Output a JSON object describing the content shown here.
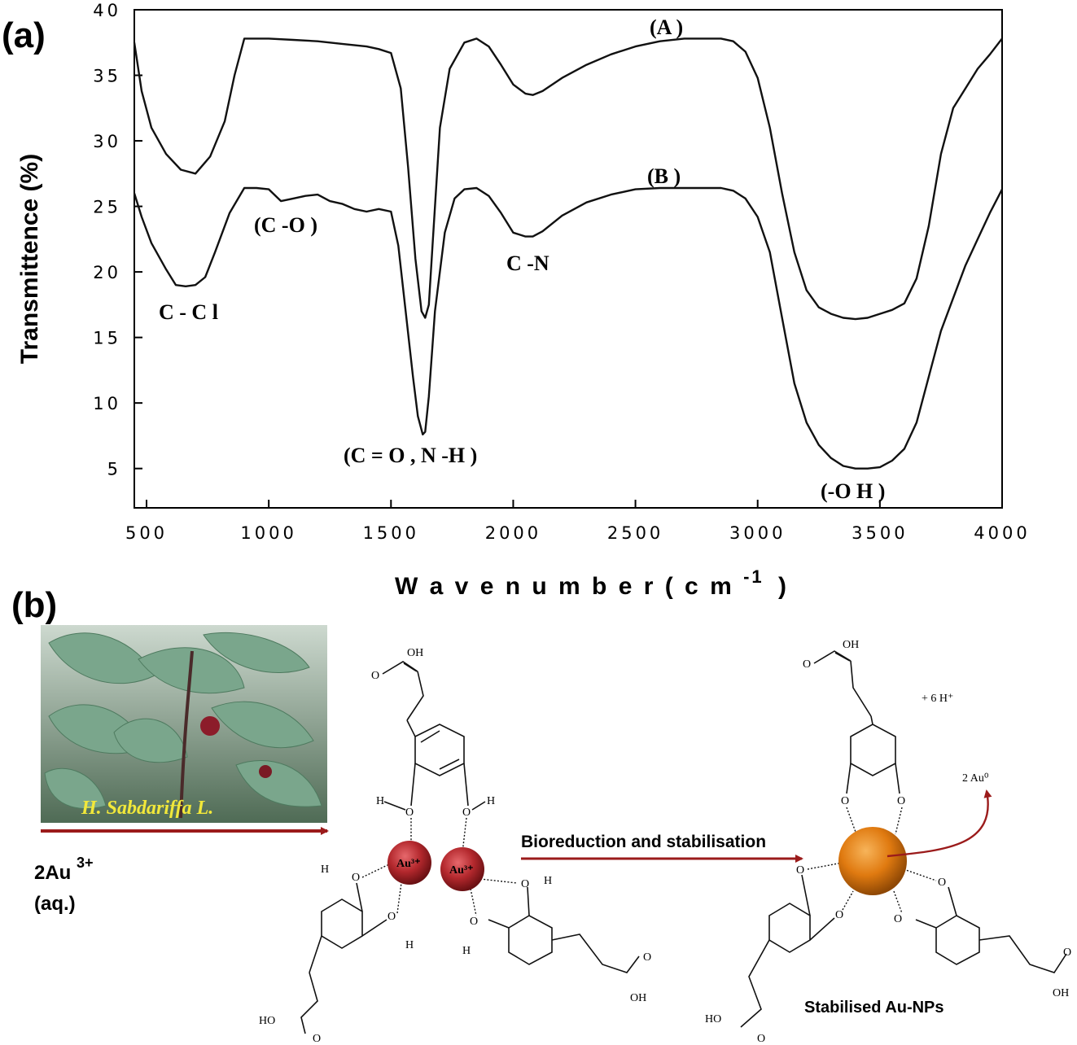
{
  "panel_a_label": "(a)",
  "panel_b_label": "(b)",
  "chart_data": {
    "type": "line",
    "xlabel": "W a v e n u m  b e r  ( c m",
    "xlabel_superscript": "-1",
    "xlabel_close": ")",
    "ylabel": "Transmittence (%)",
    "xlim": [
      450,
      4000
    ],
    "ylim": [
      2,
      40
    ],
    "x_ticks": [
      "500",
      "1000",
      "1500",
      "2000",
      "2500",
      "3000",
      "3500",
      "4000"
    ],
    "y_ticks": [
      "5",
      "10",
      "15",
      "20",
      "25",
      "30",
      "35",
      "40"
    ],
    "series": [
      {
        "name": "(A )",
        "x": [
          450,
          480,
          520,
          580,
          640,
          700,
          760,
          820,
          860,
          900,
          950,
          1000,
          1100,
          1200,
          1300,
          1400,
          1450,
          1500,
          1540,
          1570,
          1600,
          1625,
          1640,
          1655,
          1670,
          1700,
          1740,
          1800,
          1850,
          1900,
          1950,
          2000,
          2050,
          2080,
          2120,
          2200,
          2300,
          2400,
          2500,
          2600,
          2700,
          2800,
          2850,
          2900,
          2950,
          3000,
          3050,
          3100,
          3150,
          3200,
          3250,
          3300,
          3350,
          3400,
          3450,
          3500,
          3550,
          3600,
          3650,
          3700,
          3750,
          3800,
          3850,
          3900,
          3950,
          4000
        ],
        "y": [
          37.5,
          33.8,
          31.0,
          29.0,
          27.8,
          27.5,
          28.8,
          31.5,
          35.0,
          37.8,
          37.8,
          37.8,
          37.7,
          37.6,
          37.4,
          37.2,
          37.0,
          36.7,
          34.0,
          28.0,
          21.0,
          17.0,
          16.5,
          17.5,
          22.0,
          31.0,
          35.5,
          37.5,
          37.8,
          37.2,
          35.8,
          34.3,
          33.6,
          33.5,
          33.8,
          34.8,
          35.8,
          36.6,
          37.2,
          37.6,
          37.8,
          37.8,
          37.8,
          37.6,
          36.8,
          34.8,
          31.0,
          26.0,
          21.5,
          18.6,
          17.3,
          16.8,
          16.5,
          16.4,
          16.5,
          16.8,
          17.1,
          17.6,
          19.5,
          23.5,
          29.0,
          32.5,
          34.0,
          35.5,
          36.6,
          37.8
        ]
      },
      {
        "name": "(B )",
        "x": [
          450,
          480,
          520,
          580,
          620,
          660,
          700,
          740,
          780,
          840,
          900,
          950,
          1000,
          1050,
          1100,
          1150,
          1200,
          1250,
          1300,
          1350,
          1400,
          1450,
          1500,
          1530,
          1560,
          1590,
          1610,
          1630,
          1640,
          1655,
          1680,
          1720,
          1760,
          1800,
          1850,
          1900,
          1950,
          2000,
          2050,
          2080,
          2120,
          2200,
          2300,
          2400,
          2500,
          2600,
          2700,
          2800,
          2850,
          2900,
          2950,
          3000,
          3050,
          3100,
          3150,
          3200,
          3250,
          3300,
          3350,
          3400,
          3450,
          3500,
          3550,
          3600,
          3650,
          3700,
          3750,
          3800,
          3850,
          3900,
          3950,
          4000
        ],
        "y": [
          26.0,
          24.2,
          22.2,
          20.2,
          19.0,
          18.9,
          19.0,
          19.6,
          21.5,
          24.5,
          26.4,
          26.4,
          26.3,
          25.4,
          25.6,
          25.8,
          25.9,
          25.4,
          25.2,
          24.8,
          24.6,
          24.8,
          24.6,
          22.0,
          17.0,
          12.0,
          9.0,
          7.6,
          7.8,
          10.5,
          17.0,
          23.0,
          25.6,
          26.3,
          26.4,
          25.8,
          24.5,
          23.0,
          22.7,
          22.7,
          23.1,
          24.3,
          25.3,
          25.9,
          26.3,
          26.4,
          26.4,
          26.4,
          26.4,
          26.2,
          25.6,
          24.2,
          21.5,
          16.5,
          11.5,
          8.5,
          6.8,
          5.8,
          5.2,
          5.0,
          5.0,
          5.1,
          5.6,
          6.5,
          8.5,
          12.0,
          15.5,
          18.0,
          20.5,
          22.5,
          24.5,
          26.3
        ]
      }
    ],
    "annotations": [
      "C - C l",
      "(C -O )",
      "(C = O  ,  N -H )",
      "C -N",
      "(-O H )"
    ]
  },
  "panel_b": {
    "plant_caption": "H. Sabdariffa L.",
    "reactant_line1": "2Au",
    "reactant_sup": "3+",
    "reactant_line2": "(aq.)",
    "arrow_label": "Bioreduction and stabilisation",
    "product_label": "Stabilised Au-NPs",
    "protons": "+ 6 H⁺",
    "au0": "2 Au⁰",
    "au_ion": "Au³⁺",
    "oh": "OH",
    "ho": "HO",
    "h": "H",
    "o": "O",
    "colors": {
      "ion_sphere": "#b3282d",
      "np_sphere": "#e07a10",
      "arrow": "#9b1b1b",
      "leaf": "#6f9e82"
    }
  }
}
